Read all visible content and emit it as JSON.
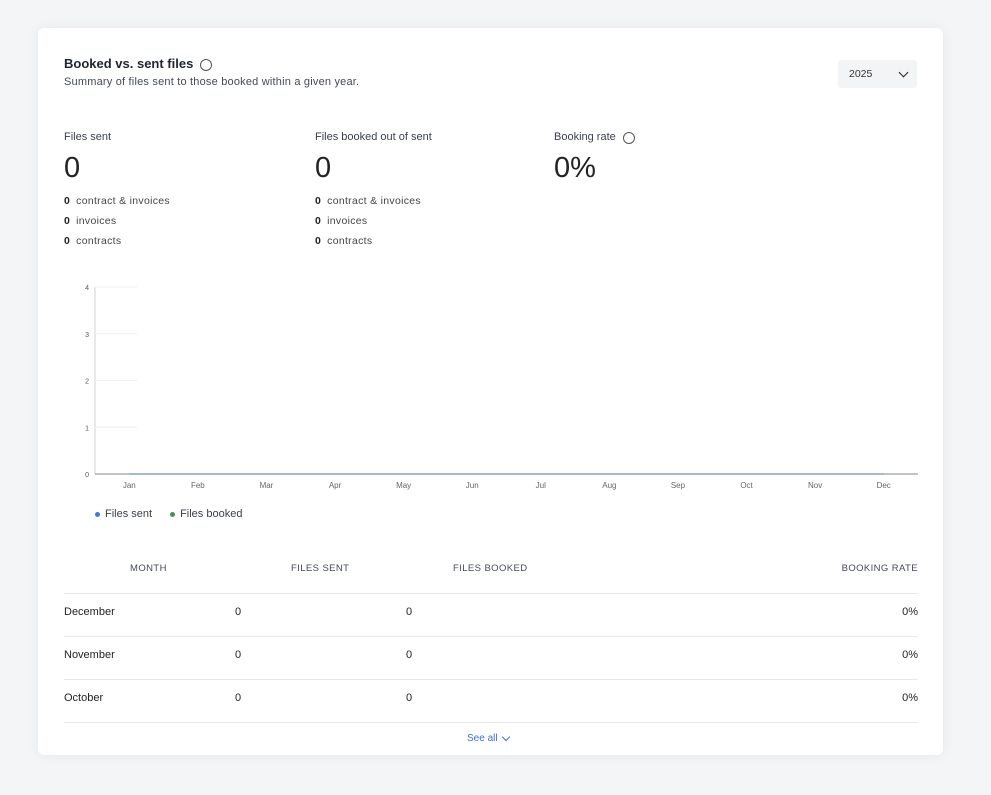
{
  "header": {
    "title": "Booked vs. sent files",
    "subtitle": "Summary of files sent to those booked within a given year.",
    "year": "2025"
  },
  "stats": [
    {
      "label": "Files sent",
      "value": "0",
      "lines": [
        {
          "count": "0",
          "text": "contract & invoices"
        },
        {
          "count": "0",
          "text": "invoices"
        },
        {
          "count": "0",
          "text": "contracts"
        }
      ]
    },
    {
      "label": "Files booked out of sent",
      "value": "0",
      "lines": [
        {
          "count": "0",
          "text": "contract & invoices"
        },
        {
          "count": "0",
          "text": "invoices"
        },
        {
          "count": "0",
          "text": "contracts"
        }
      ]
    },
    {
      "label": "Booking rate",
      "value": "0%"
    }
  ],
  "chart_data": {
    "type": "line",
    "categories": [
      "Jan",
      "Feb",
      "Mar",
      "Apr",
      "May",
      "Jun",
      "Jul",
      "Aug",
      "Sep",
      "Oct",
      "Nov",
      "Dec"
    ],
    "series": [
      {
        "name": "Files sent",
        "color": "#3b7dd8",
        "values": [
          0,
          0,
          0,
          0,
          0,
          0,
          0,
          0,
          0,
          0,
          0,
          0
        ]
      },
      {
        "name": "Files booked",
        "color": "#4a8f5a",
        "values": [
          0,
          0,
          0,
          0,
          0,
          0,
          0,
          0,
          0,
          0,
          0,
          0
        ]
      }
    ],
    "yticks": [
      "0",
      "1",
      "2",
      "3",
      "4"
    ],
    "ylim": [
      0,
      4
    ]
  },
  "table": {
    "headers": {
      "month": "MONTH",
      "sent": "FILES SENT",
      "booked": "FILES BOOKED",
      "rate": "BOOKING RATE"
    },
    "rows": [
      {
        "month": "December",
        "sent": "0",
        "booked": "0",
        "rate": "0%"
      },
      {
        "month": "November",
        "sent": "0",
        "booked": "0",
        "rate": "0%"
      },
      {
        "month": "October",
        "sent": "0",
        "booked": "0",
        "rate": "0%"
      }
    ],
    "see_all": "See all"
  }
}
